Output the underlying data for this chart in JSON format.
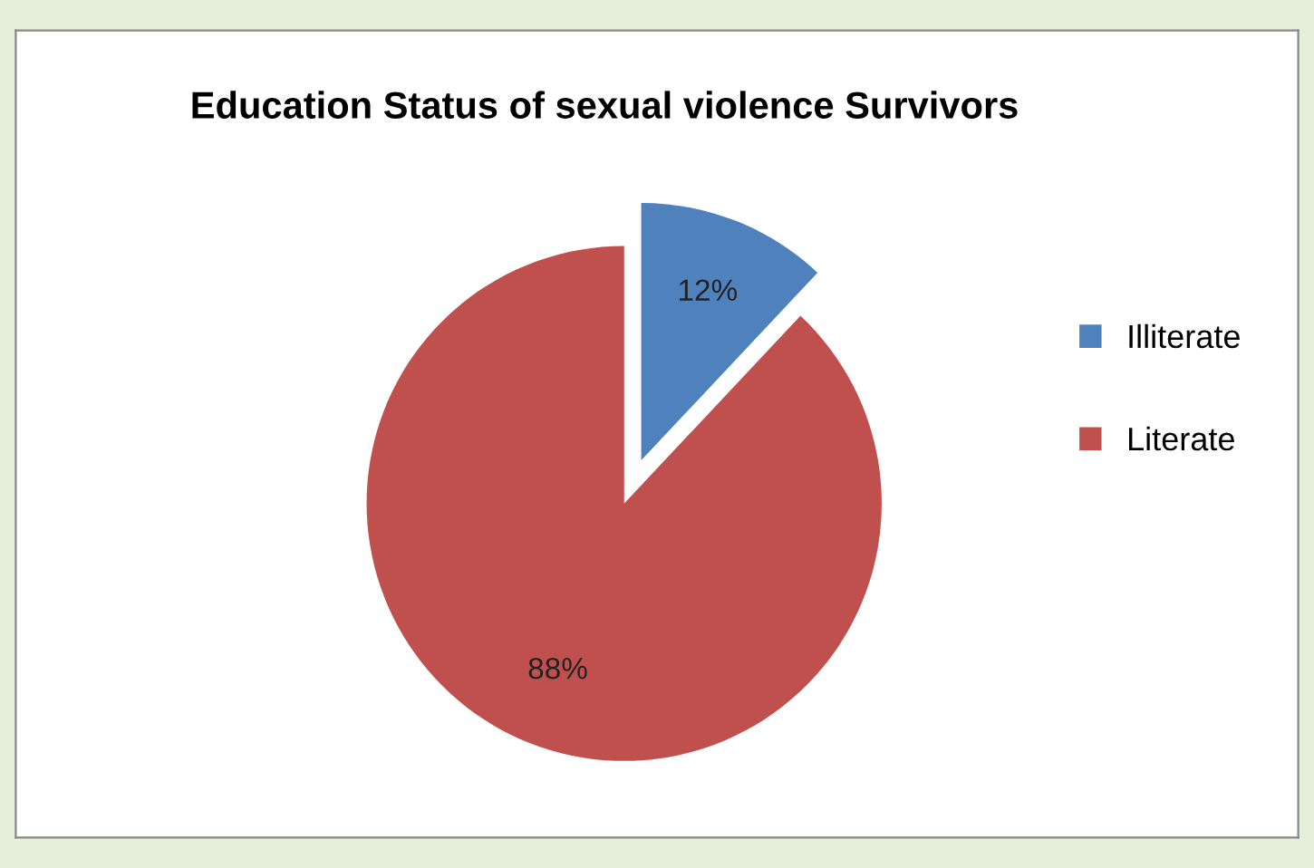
{
  "chart_data": {
    "type": "pie",
    "title": "Education Status of sexual violence Survivors",
    "categories": [
      "Illiterate",
      "Literate"
    ],
    "values": [
      12,
      88
    ],
    "value_labels": [
      "12%",
      "88%"
    ],
    "colors": [
      "#4f81bd",
      "#c0504d"
    ],
    "legend": "right"
  }
}
